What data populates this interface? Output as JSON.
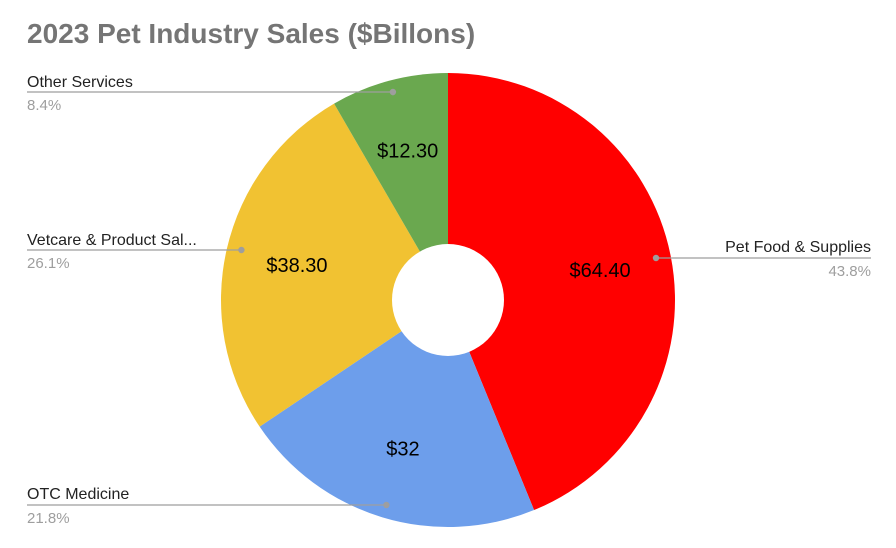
{
  "title": "2023 Pet Industry Sales ($Billons)",
  "chart_data": {
    "type": "pie",
    "title": "2023 Pet Industry Sales ($Billons)",
    "donut": true,
    "categories": [
      "Pet Food & Supplies",
      "OTC Medicine",
      "Vetcare & Product Sal...",
      "Other Services"
    ],
    "values": [
      64.4,
      32,
      38.3,
      12.3
    ],
    "value_labels": [
      "$64.40",
      "$32",
      "$38.30",
      "$12.30"
    ],
    "percent_labels": [
      "43.8%",
      "21.8%",
      "26.1%",
      "8.4%"
    ],
    "colors": [
      "#ff0000",
      "#6d9eeb",
      "#f1c232",
      "#6aa84f"
    ],
    "legend": "callout labels"
  }
}
